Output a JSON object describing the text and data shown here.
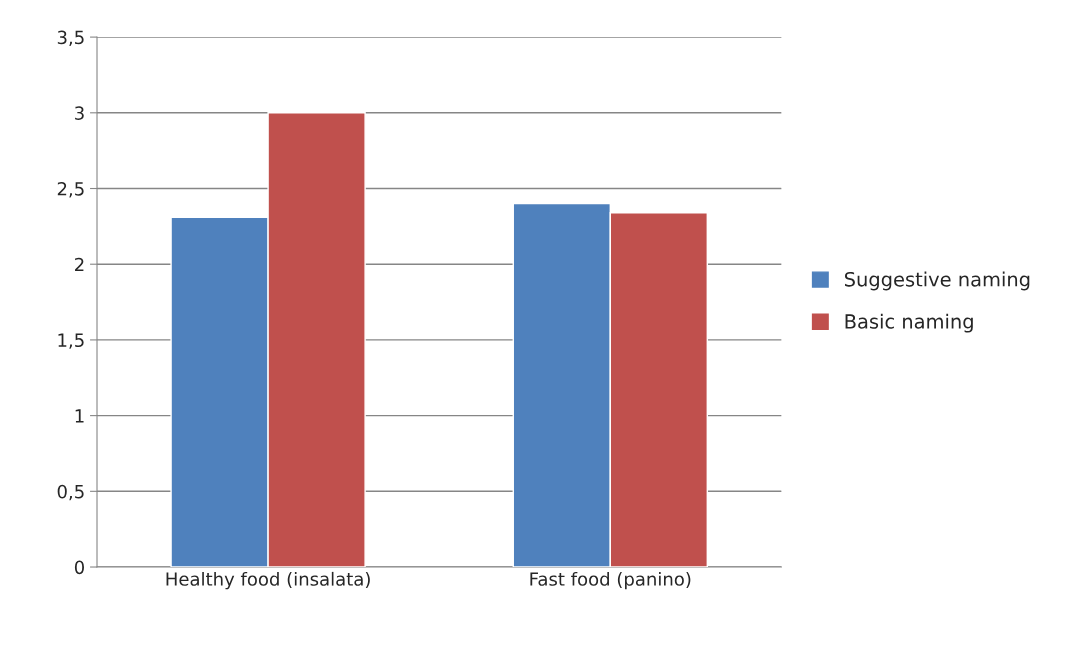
{
  "chart_data": {
    "type": "bar",
    "categories": [
      "Healthy food (insalata)",
      "Fast food (panino)"
    ],
    "series": [
      {
        "name": "Suggestive naming",
        "color": "#4f81bd",
        "values": [
          2.31,
          2.4
        ]
      },
      {
        "name": "Basic naming",
        "color": "#c0504d",
        "values": [
          3.0,
          2.34
        ]
      }
    ],
    "ylim": [
      0,
      3.5
    ],
    "yticks": [
      0,
      {
        "value": 0.5,
        "label": "0,5"
      },
      1,
      {
        "value": 1.5,
        "label": "1,5"
      },
      2,
      {
        "value": 2.5,
        "label": "2,5"
      },
      3,
      {
        "value": 3.5,
        "label": "3,5"
      }
    ],
    "grid": "y",
    "legend": "right"
  }
}
